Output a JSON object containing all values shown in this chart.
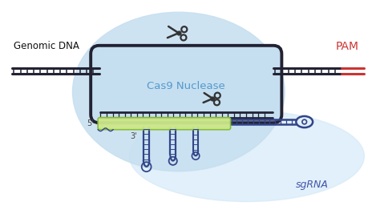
{
  "bg_color": "#ffffff",
  "cas9_blob_color": "#c5dff0",
  "sgrna_blob_color": "#d5eaf8",
  "dna_color": "#222233",
  "pam_color": "#cc3333",
  "guide_fill": "#cce888",
  "guide_stroke": "#88bb33",
  "cas9_text": "Cas9 Nuclease",
  "cas9_text_color": "#5599cc",
  "genomic_dna_text": "Genomic DNA",
  "pam_text": "PAM",
  "sgrna_text": "sgRNA",
  "sgrna_text_color": "#4455aa",
  "five_prime": "5'",
  "three_prime": "3'",
  "scissors_color": "#333333",
  "hairpin_color": "#334488"
}
